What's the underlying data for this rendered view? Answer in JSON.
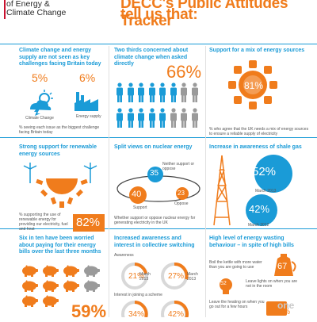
{
  "header": {
    "dept_line1": "of Energy &",
    "dept_line2": "Climate Change",
    "headline_line1": "DECC's Public Attitudes Tracker",
    "headline_line2": "tell us that:"
  },
  "colors": {
    "orange": "#f07c1c",
    "blue": "#1a9bd7",
    "grey": "#9a9a9a"
  },
  "panels": {
    "p1": {
      "title": "Climate change and energy supply are not seen as key challenges facing Britain today",
      "pct_climate": "5%",
      "pct_energy": "6%",
      "label_climate": "Climate Change",
      "label_energy": "Energy supply",
      "note": "% seeing each issue as the biggest challenge facing Britain today"
    },
    "p2": {
      "title": "Two thirds concerned about climate change when asked directly",
      "pct": "66%"
    },
    "p3": {
      "title": "Support for a mix of energy sources",
      "pct": "81%",
      "note": "% who agree that the UK needs a mix of energy sources to ensure a reliable supply of electricity"
    },
    "p4": {
      "title": "Strong support for renewable energy sources",
      "note": "% supporting the use of renewable energy for providing our electricity, fuel and heat",
      "pct": "82%"
    },
    "p5": {
      "title": "Split views on nuclear energy",
      "neither_label": "Neither support or oppose",
      "neither_pct": "35",
      "support_pct": "40",
      "oppose_pct": "23",
      "support_label": "Support",
      "oppose_label": "Oppose",
      "note": "Whether support or oppose nuclear energy for generating electricity in the UK"
    },
    "p6": {
      "title": "Increase in awareness of shale gas",
      "pct_2013": "52%",
      "label_2013": "March 2013",
      "pct_2012": "42%",
      "label_2012": "March 2012"
    },
    "p7": {
      "title": "Six in ten have been worried about paying for their energy bills over the last three months",
      "pct": "59%"
    },
    "p8": {
      "title": "Increased awareness and interest in collective switching",
      "awareness_label": "Awareness",
      "aw_pct_a": "21%",
      "aw_label_a": "March 2013",
      "aw_pct_b": "27%",
      "aw_label_b": "March 2013",
      "interest_label": "Interest in joining a scheme",
      "int_pct_a": "34%",
      "int_pct_b": "42%"
    },
    "p9": {
      "title": "High level of energy wasting behaviour – in spite of high bills",
      "kettle_pct": "67",
      "kettle_note": "Boil the kettle with more water than you are going to use",
      "lights_pct": "52",
      "lights_note": "Leave lights on when you are not in the room",
      "heating_pct": "52%",
      "heating_note": "Leave the heating on when you go out for a few hours"
    }
  },
  "watermark": "one"
}
